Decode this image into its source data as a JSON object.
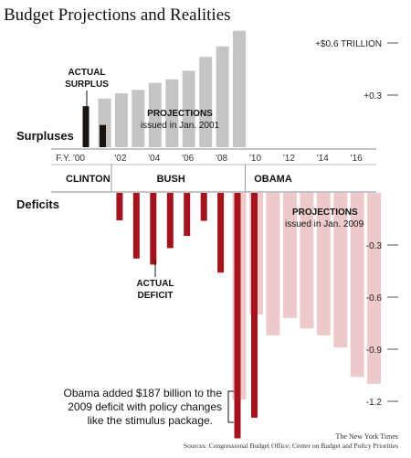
{
  "chart_data": {
    "type": "bar",
    "title": "Budget Projections and Realities",
    "unit": "TRILLION",
    "ylim": [
      -1.35,
      0.68
    ],
    "colors": {
      "actual_surplus": "#1a1410",
      "projected_surplus": "#c4c4c4",
      "actual_deficit": "#a3141f",
      "projected_deficit": "#eec9c9",
      "tick_line": "#555555"
    },
    "y_ticks": [
      {
        "value": 0.6,
        "label": "+$0.6 TRILLION"
      },
      {
        "value": 0.3,
        "label": "+0.3"
      },
      {
        "value": -0.3,
        "label": "-0.3"
      },
      {
        "value": -0.6,
        "label": "-0.6"
      },
      {
        "value": -0.9,
        "label": "-0.9"
      },
      {
        "value": -1.2,
        "label": "-1.2"
      }
    ],
    "x_tick_labels": [
      {
        "year": 2000,
        "label": "F.Y. '00"
      },
      {
        "year": 2002,
        "label": "'02"
      },
      {
        "year": 2004,
        "label": "'04"
      },
      {
        "year": 2006,
        "label": "'06"
      },
      {
        "year": 2008,
        "label": "'08"
      },
      {
        "year": 2010,
        "label": "'10"
      },
      {
        "year": 2012,
        "label": "'12"
      },
      {
        "year": 2014,
        "label": "'14"
      },
      {
        "year": 2016,
        "label": "'16"
      }
    ],
    "eras": [
      {
        "name": "CLINTON",
        "start": 2000,
        "end": 2001
      },
      {
        "name": "BUSH",
        "start": 2001,
        "end": 2009
      },
      {
        "name": "OBAMA",
        "start": 2009,
        "end": 2017
      }
    ],
    "side_labels": {
      "surpluses": "Surpluses",
      "deficits": "Deficits"
    },
    "series": [
      {
        "name": "Actual surplus",
        "values": [
          {
            "year": 2000,
            "value": 0.236
          },
          {
            "year": 2001,
            "value": 0.128
          }
        ]
      },
      {
        "name": "Projections issued in Jan. 2001",
        "values": [
          {
            "year": 2001,
            "value": 0.28
          },
          {
            "year": 2002,
            "value": 0.31
          },
          {
            "year": 2003,
            "value": 0.33
          },
          {
            "year": 2004,
            "value": 0.37
          },
          {
            "year": 2005,
            "value": 0.39
          },
          {
            "year": 2006,
            "value": 0.44
          },
          {
            "year": 2007,
            "value": 0.52
          },
          {
            "year": 2008,
            "value": 0.58
          },
          {
            "year": 2009,
            "value": 0.67
          }
        ]
      },
      {
        "name": "Actual deficit",
        "values": [
          {
            "year": 2002,
            "value": -0.158
          },
          {
            "year": 2003,
            "value": -0.378
          },
          {
            "year": 2004,
            "value": -0.413
          },
          {
            "year": 2005,
            "value": -0.318
          },
          {
            "year": 2006,
            "value": -0.248
          },
          {
            "year": 2007,
            "value": -0.161
          },
          {
            "year": 2008,
            "value": -0.459
          },
          {
            "year": 2009,
            "value": -1.413
          },
          {
            "year": 2010,
            "value": -1.294
          }
        ]
      },
      {
        "name": "Projections issued in Jan. 2009",
        "values": [
          {
            "year": 2009,
            "value": -1.19
          },
          {
            "year": 2010,
            "value": -0.7
          },
          {
            "year": 2011,
            "value": -0.82
          },
          {
            "year": 2012,
            "value": -0.72
          },
          {
            "year": 2013,
            "value": -0.78
          },
          {
            "year": 2014,
            "value": -0.82
          },
          {
            "year": 2015,
            "value": -0.89
          },
          {
            "year": 2016,
            "value": -1.06
          },
          {
            "year": 2017,
            "value": -1.1
          }
        ]
      }
    ],
    "annotations": {
      "actual_surplus": [
        "ACTUAL",
        "SURPLUS"
      ],
      "projections_2001": [
        "PROJECTIONS",
        "issued in Jan. 2001"
      ],
      "actual_deficit": [
        "ACTUAL",
        "DEFICIT"
      ],
      "projections_2009": [
        "PROJECTIONS",
        "issued in Jan. 2009"
      ],
      "obama_note": [
        "Obama added $187 billion to the",
        "2009 deficit with policy changes",
        "like the stimulus package."
      ]
    },
    "credit": "The New York Times",
    "sources": "Sources: Congressional Budget Office; Center on Budget and Policy Priorities"
  }
}
